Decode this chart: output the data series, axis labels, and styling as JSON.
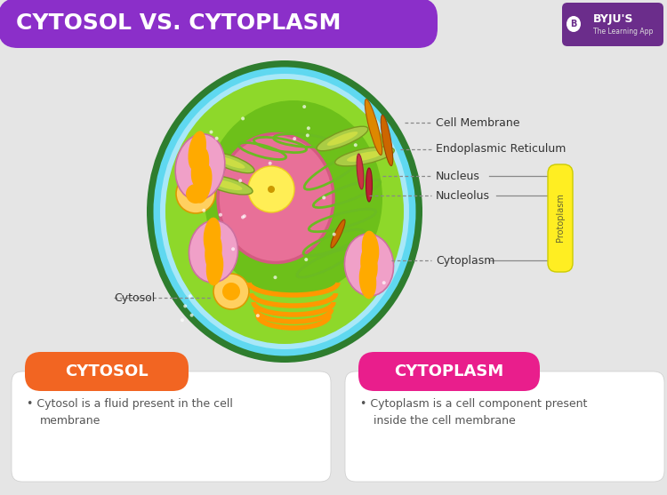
{
  "title": "CYTOSOL VS. CYTOPLASM",
  "title_bg_color": "#8B2FC9",
  "title_text_color": "#FFFFFF",
  "bg_color": "#E5E5E5",
  "byju_color": "#6B2D8B",
  "protoplasm_label": "Protoplasm",
  "left_box_title": "CYTOSOL",
  "left_box_title_color": "#FFFFFF",
  "left_box_header_color": "#F26522",
  "left_box_text": "Cytosol is a fluid present in the cell\nmembrane",
  "right_box_title": "CYTOPLASM",
  "right_box_title_color": "#FFFFFF",
  "right_box_header_color": "#E91E8C",
  "right_box_text": "Cytoplasm is a cell component present\ninside the cell membrane",
  "box_bg_color": "#FFFFFF",
  "box_text_color": "#555555",
  "cell_dark_green": "#2E7D2E",
  "cell_cyan": "#5FD8F0",
  "cell_light_blue": "#A8E8F8",
  "cell_green": "#8ED82A",
  "cell_inner_green": "#6DC01A",
  "nucleus_pink": "#E87098",
  "nucleus_edge": "#D45A80",
  "nucleolus_yellow": "#FFEE55",
  "golgi_orange": "#FF9800",
  "mito_pink": "#F0A0C8",
  "mito_orange": "#FFAA00",
  "chloro_green": "#AACC44",
  "chloro_stroke": "#7A9A20",
  "rod_red": "#CC3344",
  "rod_orange": "#DD8800"
}
